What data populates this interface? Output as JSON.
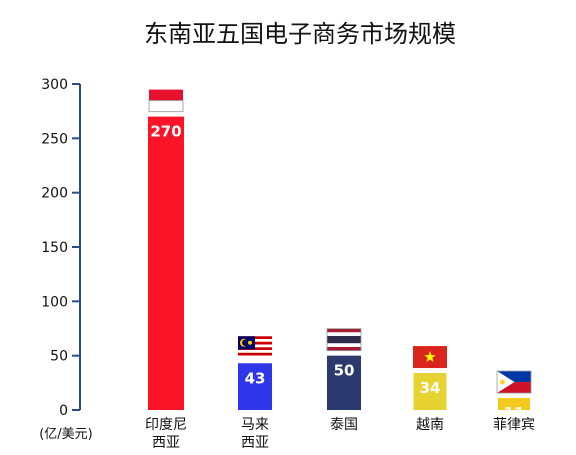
{
  "chart_data": {
    "type": "bar",
    "title": "东南亚五国电子商务市场规模",
    "unit_label": "(亿/美元)",
    "ylim": [
      0,
      300
    ],
    "yticks": [
      0,
      50,
      100,
      150,
      200,
      250,
      300
    ],
    "grid": false,
    "categories": [
      [
        "印度尼",
        "西亚"
      ],
      [
        "马来",
        "西亚"
      ],
      [
        "泰国"
      ],
      [
        "越南"
      ],
      [
        "菲律宾"
      ]
    ],
    "values": [
      270,
      43,
      50,
      34,
      11
    ],
    "bar_colors": [
      "#fb1427",
      "#2f35e8",
      "#2b3a6e",
      "#e6d231",
      "#f4c91e"
    ],
    "flags": [
      "indonesia-flag",
      "malaysia-flag",
      "thailand-flag",
      "vietnam-flag",
      "philippines-flag"
    ],
    "axis_color": "#2b4c8c"
  }
}
